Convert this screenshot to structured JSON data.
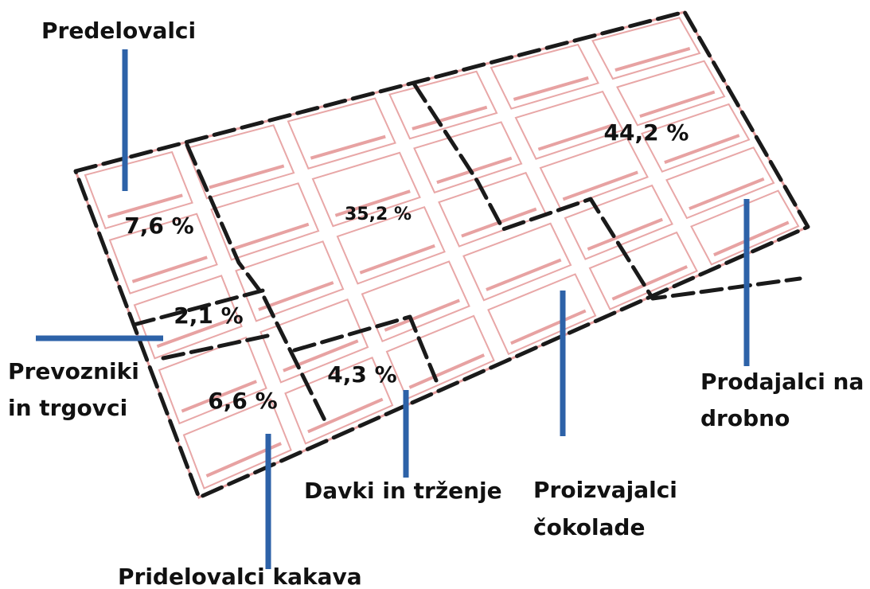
{
  "regions": [
    {
      "label_lines": [
        "Predelovalci"
      ],
      "share": "7,6 %"
    },
    {
      "label_lines": [
        "Prevozniki",
        "in trgovci"
      ],
      "share": "2,1 %"
    },
    {
      "label_lines": [
        "Pridelovalci kakava"
      ],
      "share": "6,6 %"
    },
    {
      "label_lines": [
        "Davki in trženje"
      ],
      "share": "4,3 %"
    },
    {
      "label_lines": [
        "Proizvajalci",
        "čokolade"
      ],
      "share": "35,2 %"
    },
    {
      "label_lines": [
        "Prodajalci na",
        "drobno"
      ],
      "share": "44,2 %"
    }
  ]
}
